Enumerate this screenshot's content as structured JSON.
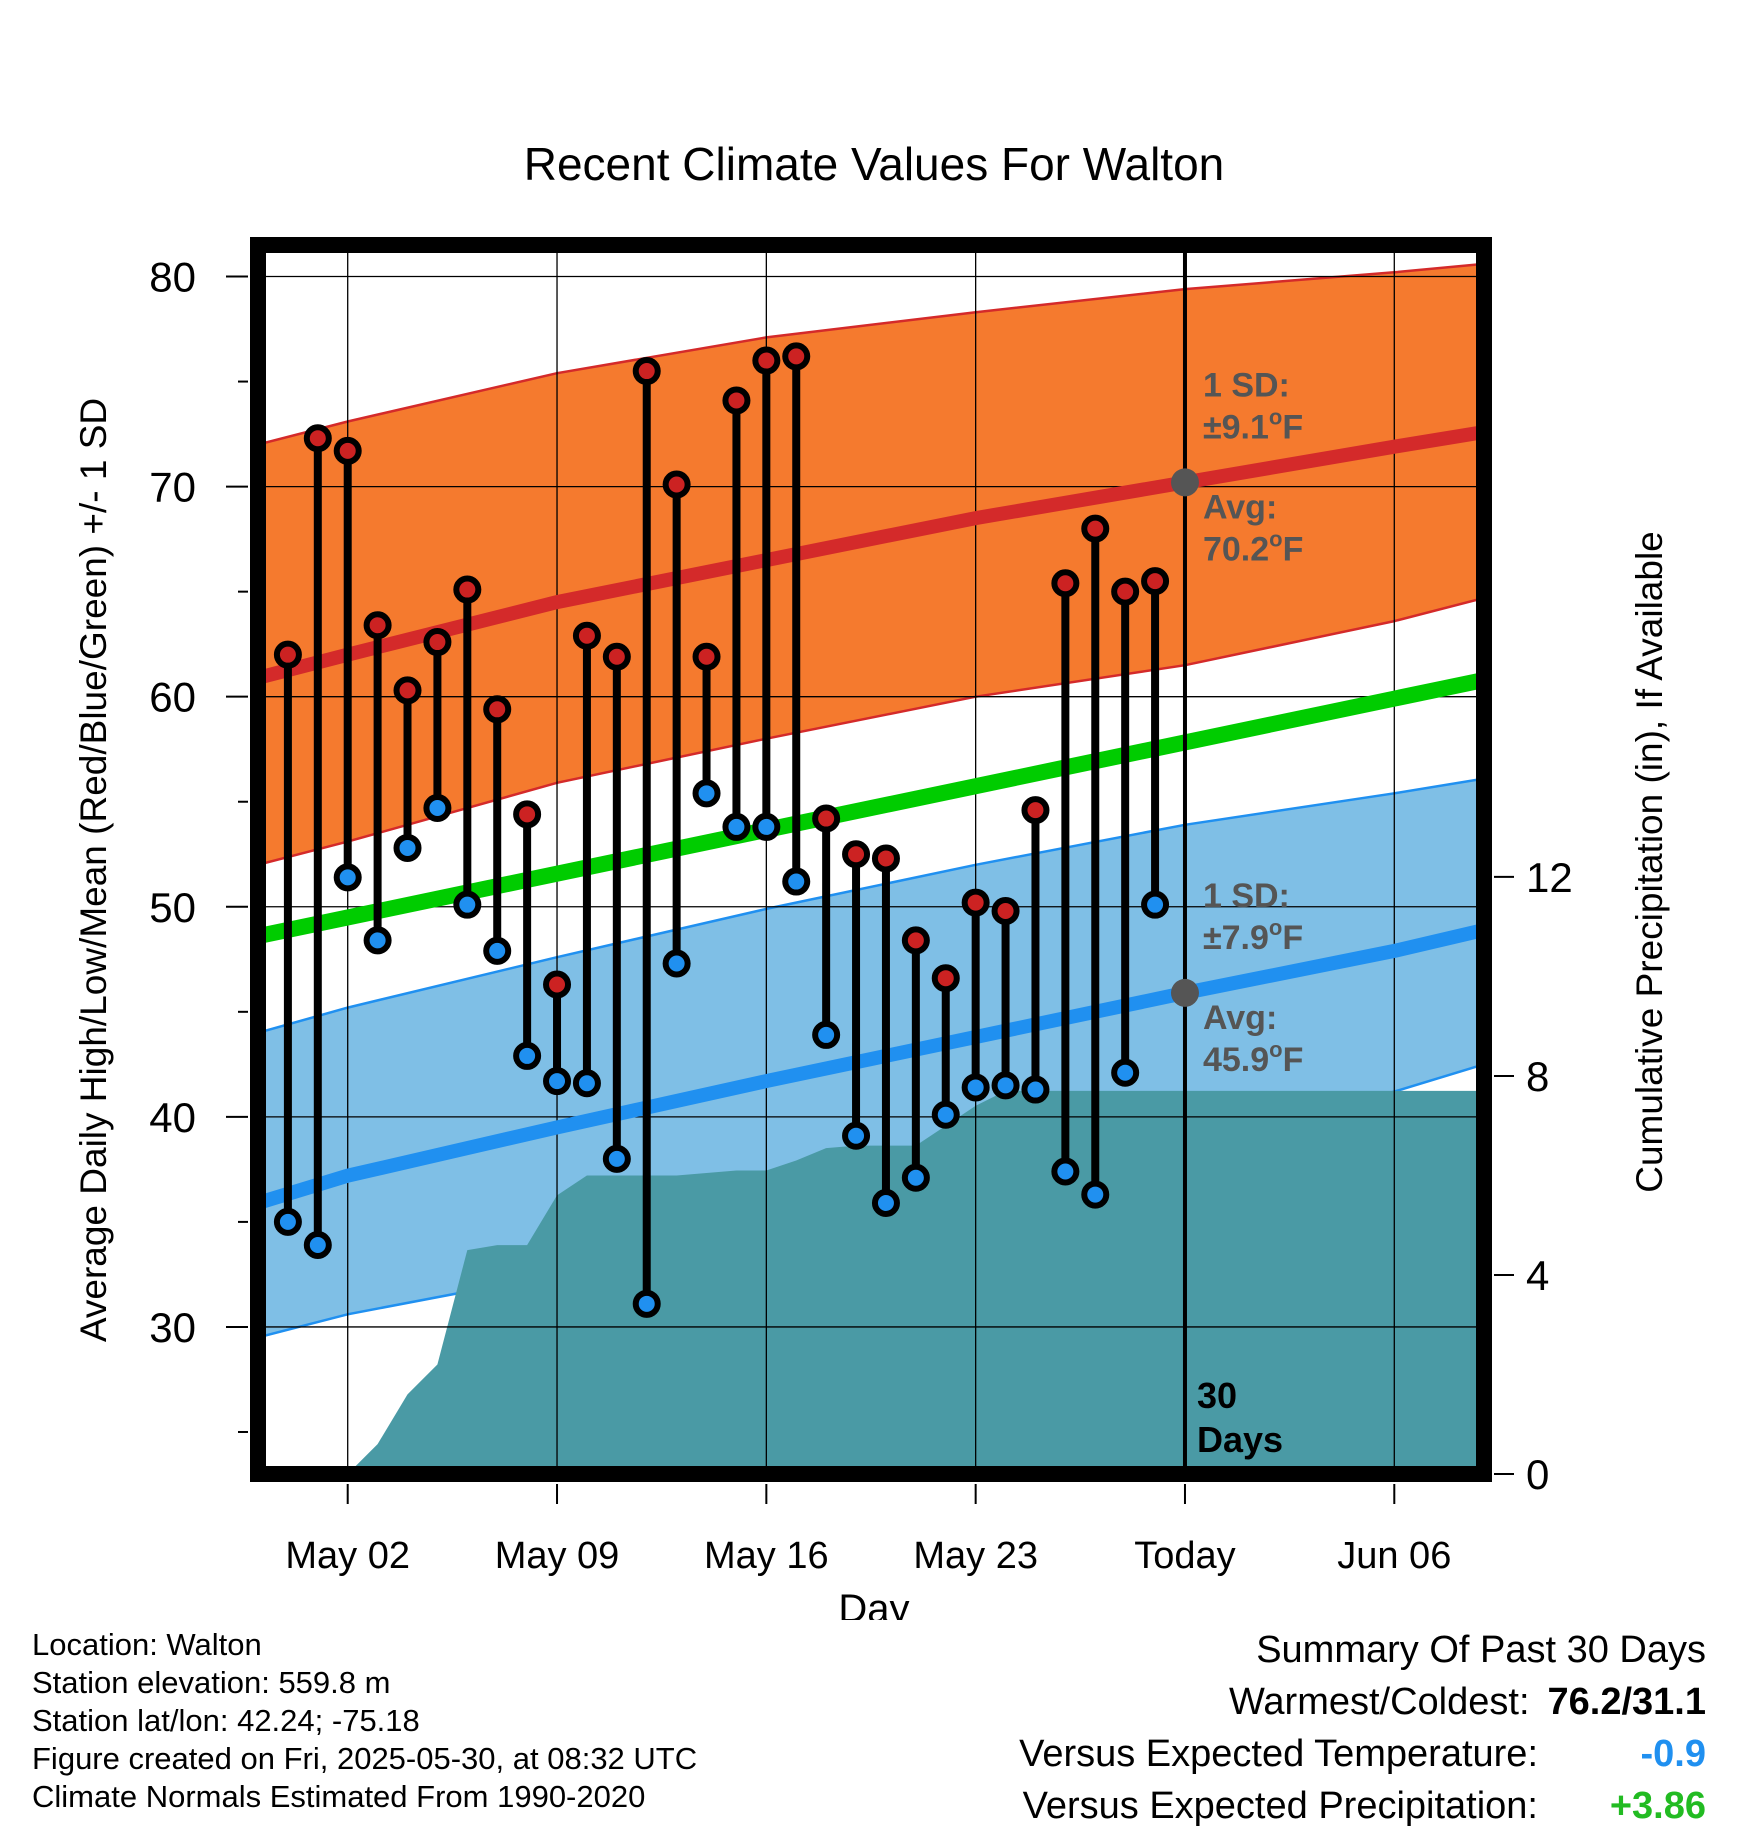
{
  "chart_data": {
    "type": "line",
    "title": "Recent Climate Values For Walton",
    "xlabel": "Day",
    "ylabel": "Average Daily High/Low/Mean (Red/Blue/Green) +/- 1 SD",
    "y2label": "Cumulative Precipitation (in), If Available",
    "ylim": [
      23,
      81.5
    ],
    "y2lim": [
      0,
      24.7
    ],
    "xlim": [
      -3,
      38
    ],
    "x_ticks": [
      {
        "day": 0,
        "label": "May 02"
      },
      {
        "day": 7,
        "label": "May 09"
      },
      {
        "day": 14,
        "label": "May 16"
      },
      {
        "day": 21,
        "label": "May 23"
      },
      {
        "day": 28,
        "label": "Today"
      },
      {
        "day": 35,
        "label": "Jun 06"
      }
    ],
    "y_ticks": [
      30,
      40,
      50,
      60,
      70,
      80
    ],
    "y2_ticks": [
      0,
      4,
      8,
      12
    ],
    "grid": true,
    "today_day": 28,
    "today_label": [
      "30",
      "Days"
    ],
    "colors": {
      "high_band": "#f57a2e",
      "high_line": "#d42a2a",
      "low_band": "#7fbfe6",
      "low_line": "#2090f0",
      "mean_line": "#00cc00",
      "precip": "#4a9aa5",
      "high_marker": "#cc2222",
      "low_marker": "#2090f0",
      "stick": "#000000",
      "annot": "#555555"
    },
    "normal_high": {
      "days": [
        -3,
        0,
        7,
        14,
        21,
        28,
        35,
        38
      ],
      "avg": [
        60.9,
        62.0,
        64.5,
        66.5,
        68.5,
        70.2,
        71.9,
        72.6
      ],
      "upper": [
        72.0,
        73.1,
        75.4,
        77.1,
        78.3,
        79.4,
        80.2,
        80.6
      ],
      "lower": [
        52.0,
        53.1,
        55.9,
        58.0,
        60.0,
        61.5,
        63.6,
        64.7
      ]
    },
    "normal_mean": {
      "days": [
        -3,
        38
      ],
      "avg": [
        48.6,
        60.8
      ]
    },
    "normal_low": {
      "days": [
        -3,
        0,
        7,
        14,
        21,
        28,
        35,
        38
      ],
      "avg": [
        35.9,
        37.2,
        39.5,
        41.7,
        43.8,
        45.9,
        47.9,
        48.9
      ],
      "upper": [
        44.0,
        45.2,
        47.6,
        49.9,
        52.0,
        53.9,
        55.4,
        56.1
      ],
      "lower": [
        29.5,
        30.6,
        32.5,
        35.0,
        37.2,
        38.9,
        41.2,
        42.5
      ]
    },
    "precip": {
      "days": [
        0,
        1,
        2,
        3,
        4,
        5,
        6,
        7,
        8,
        9,
        10,
        11,
        12,
        13,
        14,
        15,
        16,
        17,
        18,
        19,
        20,
        21,
        22,
        23,
        24,
        25,
        26,
        27,
        28,
        29,
        30,
        31,
        32,
        33,
        34,
        35,
        36,
        37,
        38
      ],
      "values": [
        0,
        0.6,
        1.6,
        2.2,
        4.5,
        4.6,
        4.6,
        5.6,
        6.0,
        6.0,
        6.0,
        6.0,
        6.05,
        6.1,
        6.1,
        6.3,
        6.55,
        6.6,
        6.6,
        6.6,
        7.0,
        7.4,
        7.7,
        7.7,
        7.7,
        7.7,
        7.7,
        7.7,
        7.7,
        7.7,
        7.7,
        7.7,
        7.7,
        7.7,
        7.7,
        7.7,
        7.7,
        7.7,
        7.7
      ]
    },
    "observed": {
      "days": [
        -2,
        -1,
        0,
        1,
        2,
        3,
        4,
        5,
        6,
        7,
        8,
        9,
        10,
        11,
        12,
        13,
        14,
        15,
        16,
        17,
        18,
        19,
        20,
        21,
        22,
        23,
        24,
        25,
        26,
        27
      ],
      "high": [
        62.0,
        72.3,
        71.7,
        63.4,
        60.3,
        62.6,
        65.1,
        59.4,
        54.4,
        46.3,
        62.9,
        61.9,
        75.5,
        70.1,
        61.9,
        74.1,
        76.0,
        76.2,
        54.2,
        52.5,
        52.3,
        48.4,
        46.6,
        50.2,
        49.8,
        54.6,
        65.4,
        68.0,
        65.0,
        65.5
      ],
      "low": [
        35.0,
        33.9,
        51.4,
        48.4,
        52.8,
        54.7,
        50.1,
        47.9,
        42.9,
        41.7,
        41.6,
        38.0,
        31.1,
        47.3,
        55.4,
        53.8,
        53.8,
        51.2,
        43.9,
        39.1,
        35.9,
        37.1,
        40.1,
        41.4,
        41.5,
        41.3,
        37.4,
        36.3,
        42.1,
        50.1
      ]
    },
    "annotations": {
      "high_sd_label": "1 SD:",
      "high_sd_value": "±9.1",
      "high_avg_label": "Avg:",
      "high_avg_value": "70.2",
      "low_sd_label": "1 SD:",
      "low_sd_value": "±7.9",
      "low_avg_label": "Avg:",
      "low_avg_value": "45.9",
      "degree_mark": "o",
      "unit": "F"
    }
  },
  "footer": {
    "location": "Location: Walton",
    "elevation": "Station elevation: 559.8 m",
    "latlon": "Station lat/lon: 42.24; -75.18",
    "created": "Figure created on Fri, 2025-05-30, at 08:32 UTC",
    "normals": "Climate Normals Estimated From 1990-2020"
  },
  "summary": {
    "title": "Summary Of Past 30 Days",
    "warm_cold_label": "Warmest/Coldest:",
    "warm_cold_value": "76.2/31.1",
    "temp_label": "Versus Expected Temperature:",
    "temp_value": "-0.9",
    "temp_color": "#2090f0",
    "precip_label": "Versus Expected Precipitation:",
    "precip_value": "+3.86",
    "precip_color": "#22bb22"
  }
}
